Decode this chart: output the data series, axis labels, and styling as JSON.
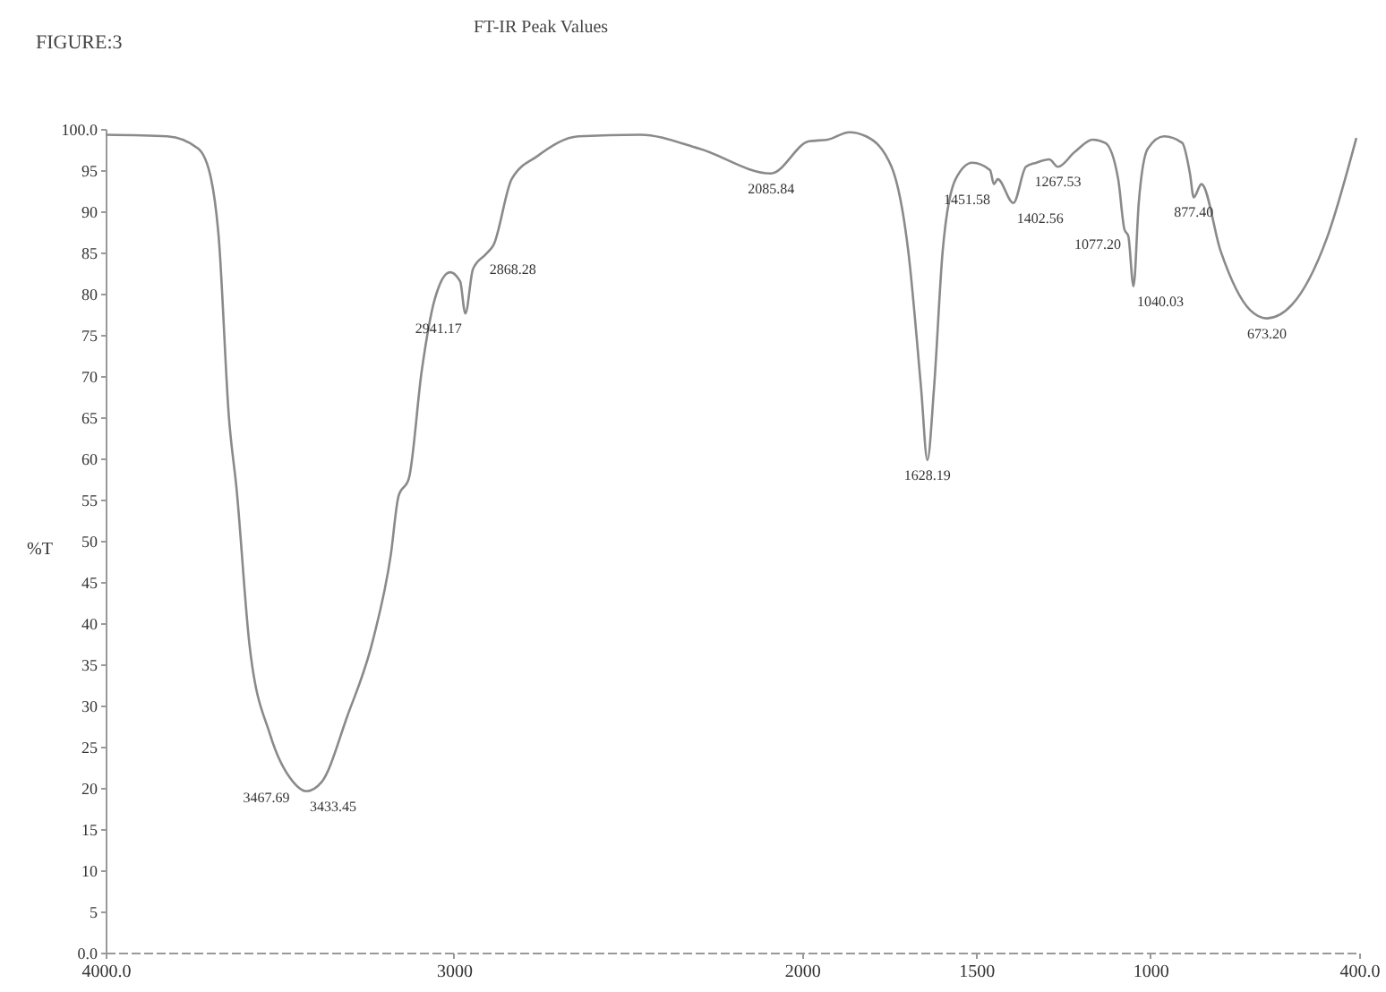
{
  "chart_data": {
    "type": "line",
    "title": "FT-IR Peak Values",
    "ylabel": "%T",
    "x": [
      4000,
      3823,
      3734,
      3697,
      3675,
      3646,
      3624,
      3587,
      3528,
      3461,
      3424,
      3380,
      3306,
      3232,
      3181,
      3159,
      3129,
      3092,
      3055,
      3011,
      2982,
      2967,
      2945,
      2908,
      2886,
      2834,
      2760,
      2642,
      2465,
      2295,
      2089,
      1980,
      1926,
      1864,
      1816,
      1743,
      1695,
      1658,
      1640,
      1621,
      1596,
      1559,
      1511,
      1460,
      1449,
      1438,
      1393,
      1357,
      1327,
      1290,
      1265,
      1217,
      1165,
      1129,
      1092,
      1074,
      1063,
      1048,
      1033,
      1007,
      960,
      908,
      886,
      875,
      853,
      798,
      713,
      665,
      592,
      493,
      408
    ],
    "series": [
      {
        "color": "#8a8a8a",
        "values": [
          99.3,
          99.1,
          97.6,
          93.9,
          86.7,
          65,
          56.3,
          37.4,
          26.5,
          20.7,
          19.6,
          20.7,
          28.7,
          38,
          48.3,
          55.4,
          57.6,
          70.7,
          79.3,
          82.6,
          81.5,
          77.6,
          83,
          84.8,
          85.9,
          93.9,
          96.7,
          99.1,
          99.3,
          97.6,
          94.6,
          98.5,
          98.7,
          99.6,
          99.1,
          95.4,
          85.2,
          68.5,
          59.8,
          68.5,
          85.2,
          93.9,
          95.9,
          95,
          93.3,
          93.9,
          91,
          95.4,
          95.9,
          96.3,
          95.4,
          97.2,
          98.7,
          98.3,
          93.9,
          87.8,
          87,
          80.9,
          91,
          97.6,
          99.1,
          98.3,
          94.6,
          91.7,
          93.3,
          85.2,
          78,
          77,
          78.7,
          86.7,
          98.9
        ]
      }
    ],
    "xlim": [
      4000,
      400
    ],
    "xticks": [
      {
        "value": 4000,
        "label": "4000.0"
      },
      3000,
      2000,
      1500,
      1000,
      {
        "value": 400,
        "label": "400.0"
      }
    ],
    "ylim": [
      0,
      100
    ],
    "yticks": [
      {
        "value": 0,
        "label": "0.0"
      },
      5,
      10,
      15,
      20,
      25,
      30,
      35,
      40,
      45,
      50,
      55,
      60,
      65,
      70,
      75,
      80,
      85,
      90,
      95,
      {
        "value": 100,
        "label": "100.0"
      }
    ],
    "grid": false,
    "marker": "none",
    "line_style": "solid",
    "annotations": [
      "FIGURE:3",
      {
        "text": "3467.69",
        "x": 3461,
        "y": 20.7
      },
      {
        "text": "3433.45",
        "x": 3424,
        "y": 19.6
      },
      {
        "text": "2941.17",
        "x": 2967,
        "y": 77.6
      },
      {
        "text": "2868.28",
        "x": 2908,
        "y": 84.8
      },
      {
        "text": "2085.84",
        "x": 2089,
        "y": 94.6
      },
      {
        "text": "1628.19",
        "x": 1640,
        "y": 59.8
      },
      {
        "text": "1451.58",
        "x": 1449,
        "y": 93.3
      },
      {
        "text": "1402.56",
        "x": 1393,
        "y": 91
      },
      {
        "text": "1267.53",
        "x": 1265,
        "y": 95.4
      },
      {
        "text": "1077.20",
        "x": 1074,
        "y": 87.8
      },
      {
        "text": "1040.03",
        "x": 1048,
        "y": 80.9
      },
      {
        "text": "877.40",
        "x": 875,
        "y": 91.7
      },
      {
        "text": "673.20",
        "x": 665,
        "y": 77
      }
    ]
  }
}
